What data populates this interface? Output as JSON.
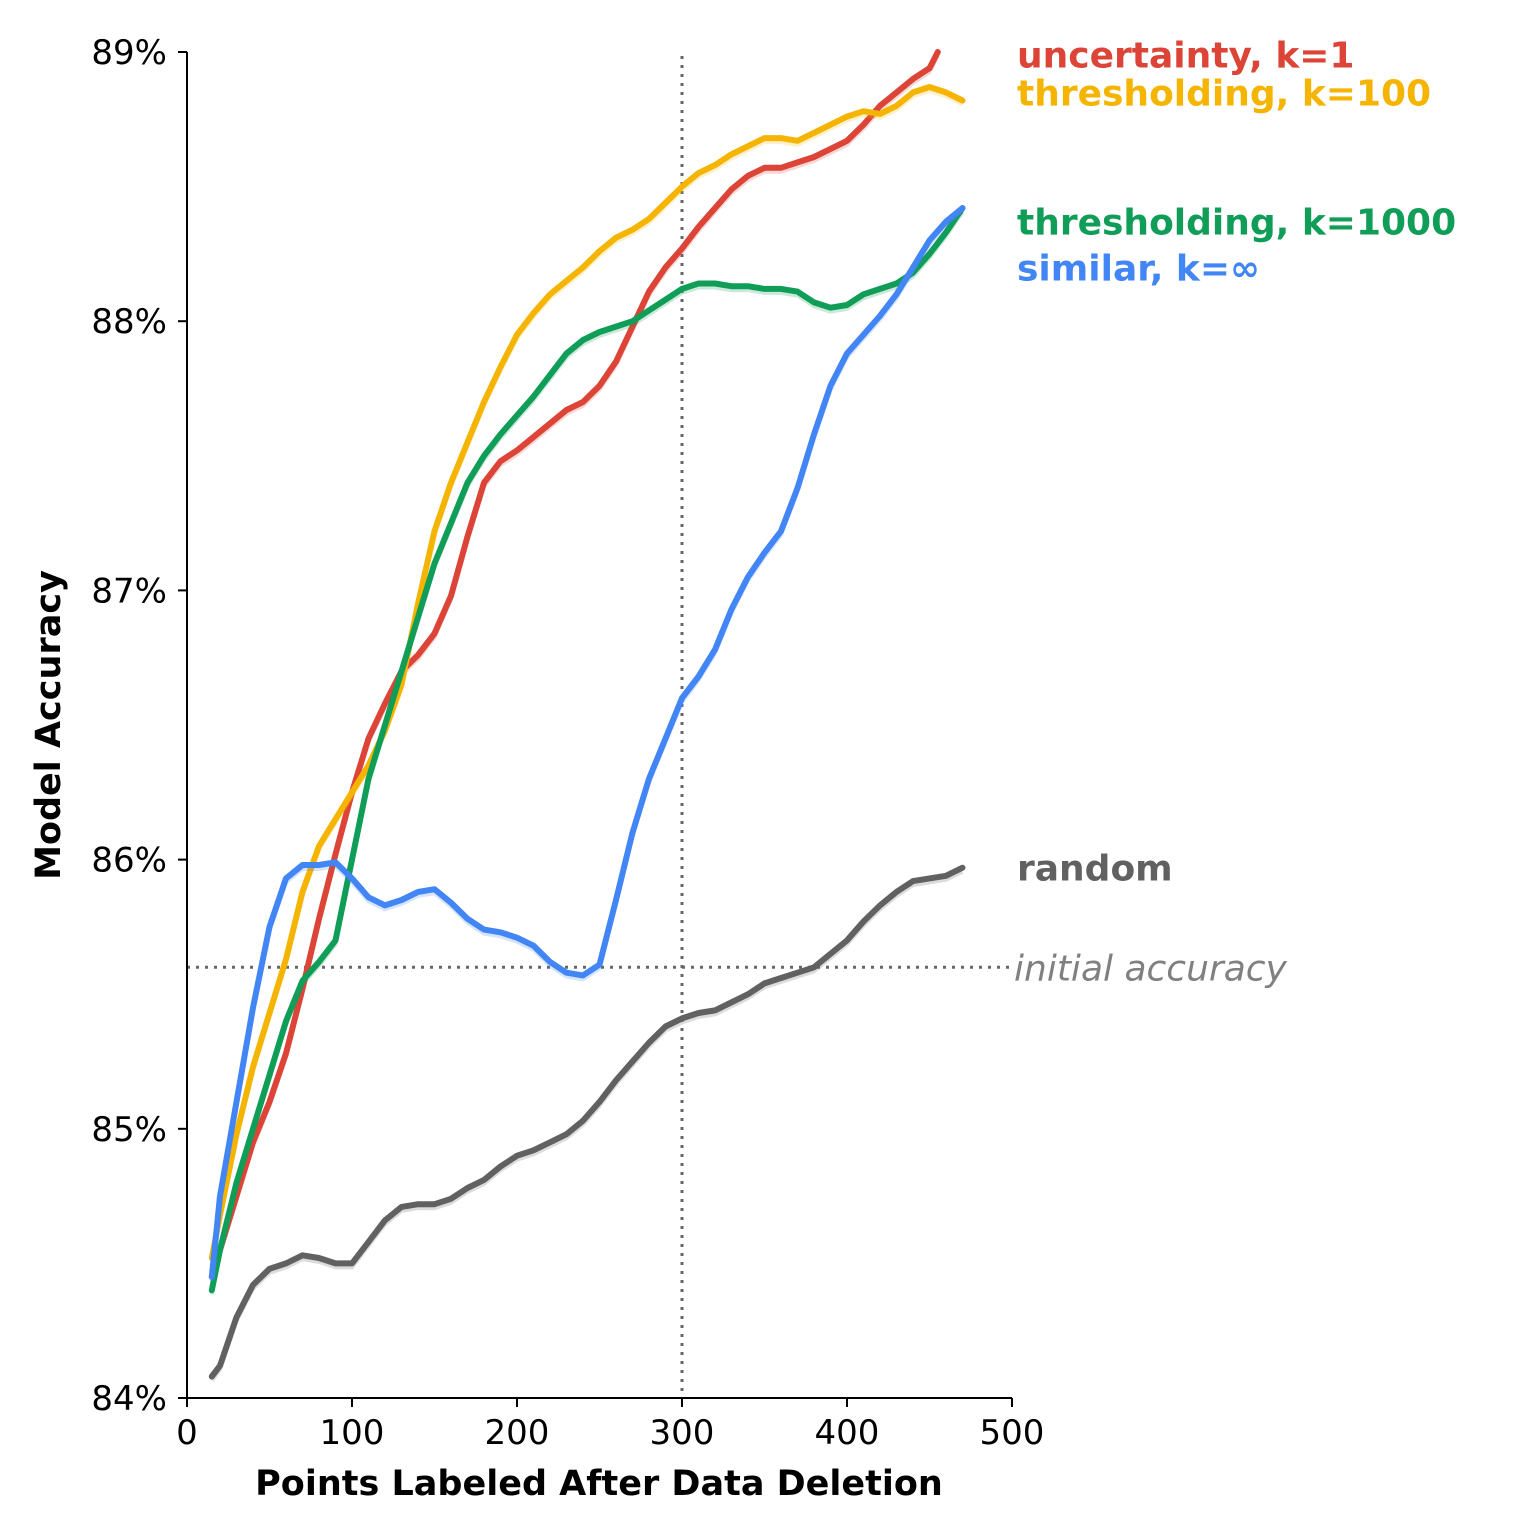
{
  "chart_data": {
    "type": "line",
    "title": "",
    "xlabel": "Points Labeled After Data Deletion",
    "ylabel": "Model Accuracy",
    "xlim": [
      0,
      500
    ],
    "ylim": [
      84,
      89
    ],
    "x_ticks": [
      0,
      100,
      200,
      300,
      400,
      500
    ],
    "x_tick_labels": [
      "0",
      "100",
      "200",
      "300",
      "400",
      "500"
    ],
    "y_ticks": [
      84,
      85,
      86,
      87,
      88,
      89
    ],
    "y_tick_labels": [
      "84%",
      "85%",
      "86%",
      "87%",
      "88%",
      "89%"
    ],
    "grid": false,
    "legend": "direct labels at right end of lines",
    "reference_lines": [
      {
        "orientation": "horizontal",
        "y": 85.6,
        "label": "initial accuracy",
        "style": "dotted",
        "color": "#666666"
      },
      {
        "orientation": "vertical",
        "x": 300,
        "label": "",
        "style": "dotted",
        "color": "#666666"
      }
    ],
    "series": [
      {
        "name": "uncertainty, k=1",
        "color": "#db4437",
        "label_y": 88.99,
        "x": [
          15,
          20,
          30,
          40,
          50,
          60,
          70,
          80,
          90,
          100,
          110,
          120,
          130,
          140,
          150,
          160,
          170,
          180,
          190,
          200,
          210,
          220,
          230,
          240,
          250,
          260,
          270,
          280,
          290,
          300,
          310,
          320,
          330,
          340,
          350,
          360,
          370,
          380,
          390,
          400,
          410,
          420,
          430,
          440,
          450,
          455
        ],
        "y": [
          84.45,
          84.55,
          84.75,
          84.95,
          85.1,
          85.28,
          85.52,
          85.78,
          86.02,
          86.25,
          86.45,
          86.58,
          86.7,
          86.76,
          86.84,
          86.98,
          87.2,
          87.4,
          87.48,
          87.52,
          87.57,
          87.62,
          87.67,
          87.7,
          87.76,
          87.85,
          87.98,
          88.11,
          88.2,
          88.27,
          88.35,
          88.42,
          88.49,
          88.54,
          88.57,
          88.57,
          88.59,
          88.61,
          88.64,
          88.67,
          88.73,
          88.8,
          88.85,
          88.9,
          88.94,
          89.0
        ]
      },
      {
        "name": "thresholding, k=100",
        "color": "#f4b400",
        "label_y": 88.85,
        "x": [
          15,
          20,
          30,
          40,
          50,
          60,
          70,
          80,
          90,
          100,
          110,
          120,
          130,
          140,
          150,
          160,
          170,
          180,
          190,
          200,
          210,
          220,
          230,
          240,
          250,
          260,
          270,
          280,
          290,
          300,
          310,
          320,
          330,
          340,
          350,
          360,
          370,
          380,
          390,
          400,
          410,
          420,
          430,
          440,
          450,
          460,
          470
        ],
        "y": [
          84.52,
          84.68,
          84.98,
          85.23,
          85.43,
          85.63,
          85.88,
          86.05,
          86.15,
          86.25,
          86.35,
          86.48,
          86.65,
          86.95,
          87.22,
          87.4,
          87.55,
          87.7,
          87.83,
          87.95,
          88.03,
          88.1,
          88.15,
          88.2,
          88.26,
          88.31,
          88.34,
          88.38,
          88.44,
          88.5,
          88.55,
          88.58,
          88.62,
          88.65,
          88.68,
          88.68,
          88.67,
          88.7,
          88.73,
          88.76,
          88.78,
          88.77,
          88.8,
          88.85,
          88.87,
          88.85,
          88.82
        ]
      },
      {
        "name": "thresholding, k=1000",
        "color": "#0f9d58",
        "label_y": 88.37,
        "x": [
          15,
          20,
          30,
          40,
          50,
          60,
          70,
          80,
          90,
          100,
          110,
          120,
          130,
          140,
          150,
          160,
          170,
          180,
          190,
          200,
          210,
          220,
          230,
          240,
          250,
          260,
          270,
          280,
          290,
          300,
          310,
          320,
          330,
          340,
          350,
          360,
          370,
          380,
          390,
          400,
          410,
          420,
          430,
          440,
          450,
          460,
          470
        ],
        "y": [
          84.4,
          84.55,
          84.8,
          85.0,
          85.2,
          85.4,
          85.55,
          85.62,
          85.7,
          86.0,
          86.3,
          86.5,
          86.7,
          86.9,
          87.1,
          87.25,
          87.4,
          87.5,
          87.58,
          87.65,
          87.72,
          87.8,
          87.88,
          87.93,
          87.96,
          87.98,
          88.0,
          88.04,
          88.08,
          88.12,
          88.14,
          88.14,
          88.13,
          88.13,
          88.12,
          88.12,
          88.11,
          88.07,
          88.05,
          88.06,
          88.1,
          88.12,
          88.14,
          88.18,
          88.25,
          88.33,
          88.42
        ]
      },
      {
        "name": "similar, k=∞",
        "color": "#4285f4",
        "label_y": 88.2,
        "x": [
          15,
          20,
          30,
          40,
          50,
          60,
          70,
          80,
          90,
          100,
          110,
          120,
          130,
          140,
          150,
          160,
          170,
          180,
          190,
          200,
          210,
          220,
          230,
          240,
          250,
          260,
          270,
          280,
          290,
          300,
          310,
          320,
          330,
          340,
          350,
          360,
          370,
          380,
          390,
          400,
          410,
          420,
          430,
          440,
          450,
          460,
          470
        ],
        "y": [
          84.45,
          84.75,
          85.1,
          85.45,
          85.75,
          85.93,
          85.98,
          85.98,
          85.99,
          85.93,
          85.86,
          85.83,
          85.85,
          85.88,
          85.89,
          85.84,
          85.78,
          85.74,
          85.73,
          85.71,
          85.68,
          85.62,
          85.58,
          85.57,
          85.61,
          85.85,
          86.1,
          86.3,
          86.45,
          86.6,
          86.68,
          86.78,
          86.93,
          87.05,
          87.14,
          87.22,
          87.38,
          87.58,
          87.76,
          87.88,
          87.95,
          88.02,
          88.1,
          88.2,
          88.3,
          88.37,
          88.42
        ]
      },
      {
        "name": "random",
        "color": "#616161",
        "label_y": 85.97,
        "x": [
          15,
          20,
          30,
          40,
          50,
          60,
          70,
          80,
          90,
          100,
          110,
          120,
          130,
          140,
          150,
          160,
          170,
          180,
          190,
          200,
          210,
          220,
          230,
          240,
          250,
          260,
          270,
          280,
          290,
          300,
          310,
          320,
          330,
          340,
          350,
          360,
          370,
          380,
          390,
          400,
          410,
          420,
          430,
          440,
          450,
          460,
          470
        ],
        "y": [
          84.08,
          84.12,
          84.3,
          84.42,
          84.48,
          84.5,
          84.53,
          84.52,
          84.5,
          84.5,
          84.58,
          84.66,
          84.71,
          84.72,
          84.72,
          84.74,
          84.78,
          84.81,
          84.86,
          84.9,
          84.92,
          84.95,
          84.98,
          85.03,
          85.1,
          85.18,
          85.25,
          85.32,
          85.38,
          85.41,
          85.43,
          85.44,
          85.47,
          85.5,
          85.54,
          85.56,
          85.58,
          85.6,
          85.65,
          85.7,
          85.77,
          85.83,
          85.88,
          85.92,
          85.93,
          85.94,
          85.97
        ]
      }
    ]
  }
}
